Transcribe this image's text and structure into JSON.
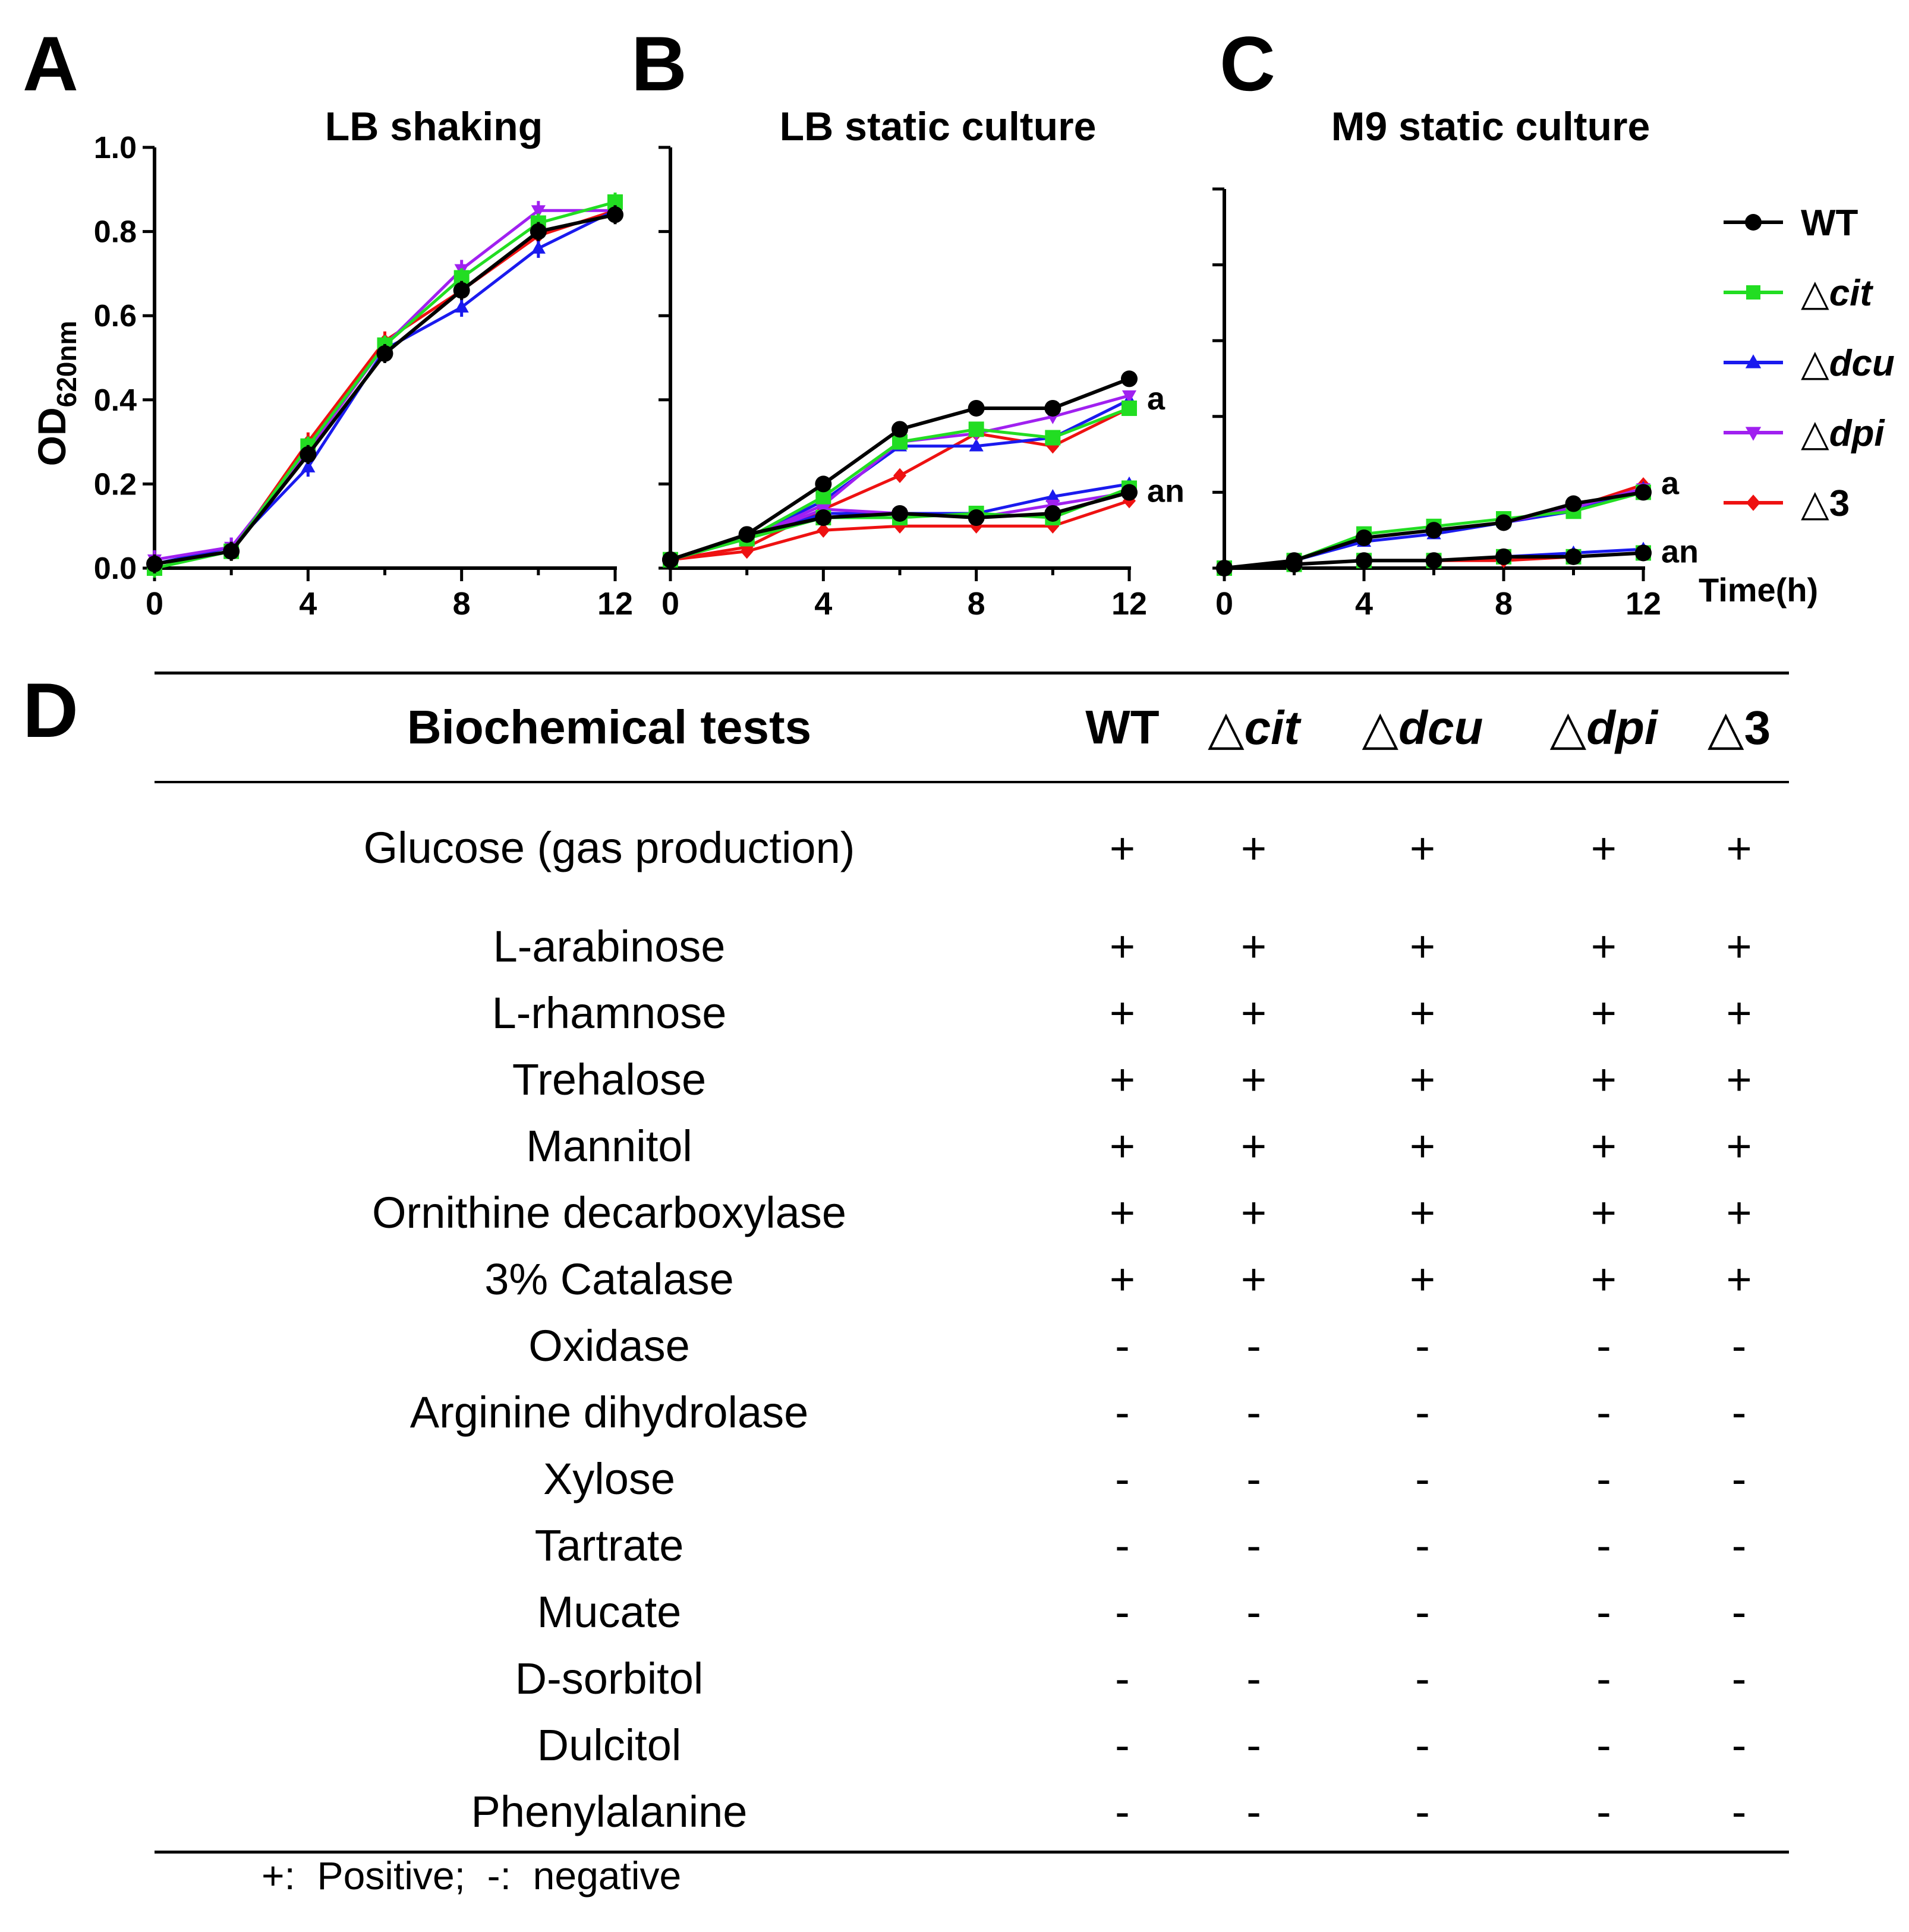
{
  "panel_letters": {
    "a": "A",
    "b": "B",
    "c": "C",
    "d": "D"
  },
  "colors": {
    "WT": "#000000",
    "cit": "#22dd22",
    "dcu": "#1a1aee",
    "dpi": "#a020f0",
    "d3": "#ee1111"
  },
  "legend": [
    {
      "key": "WT",
      "prefix": "",
      "label": "WT",
      "marker": "circle",
      "color": "#000000"
    },
    {
      "key": "cit",
      "prefix": "△",
      "label": "cit",
      "marker": "square",
      "color": "#22dd22"
    },
    {
      "key": "dcu",
      "prefix": "△",
      "label": "dcu",
      "marker": "triangle-up",
      "color": "#1a1aee"
    },
    {
      "key": "dpi",
      "prefix": "△",
      "label": "dpi",
      "marker": "triangle-down",
      "color": "#a020f0"
    },
    {
      "key": "d3",
      "prefix": "△",
      "label": "3",
      "marker": "diamond",
      "color": "#ee1111"
    }
  ],
  "chart_data": [
    {
      "type": "line",
      "panel": "A",
      "title": "LB shaking",
      "ylabel": "OD",
      "ylabel_sub": "620nm",
      "ylim": [
        0,
        1.0
      ],
      "yticks": [
        0.0,
        0.2,
        0.4,
        0.6,
        0.8,
        1.0
      ],
      "ytick_labels": [
        "0.0",
        "0.2",
        "0.4",
        "0.6",
        "0.8",
        "1.0"
      ],
      "xlim": [
        0,
        12
      ],
      "xticks": [
        0,
        4,
        8,
        12
      ],
      "xtick_labels": [
        "0",
        "4",
        "8",
        "12"
      ],
      "x": [
        0,
        2,
        4,
        6,
        8,
        10,
        12
      ],
      "series": [
        {
          "name": "WT",
          "key": "WT",
          "values": [
            0.01,
            0.04,
            0.27,
            0.51,
            0.66,
            0.8,
            0.84
          ]
        },
        {
          "name": "△cit",
          "key": "cit",
          "values": [
            0.0,
            0.04,
            0.29,
            0.53,
            0.69,
            0.82,
            0.87
          ]
        },
        {
          "name": "△dcu",
          "key": "dcu",
          "values": [
            0.01,
            0.05,
            0.24,
            0.52,
            0.62,
            0.76,
            0.85
          ]
        },
        {
          "name": "△dpi",
          "key": "dpi",
          "values": [
            0.02,
            0.05,
            0.28,
            0.53,
            0.71,
            0.85,
            0.85
          ]
        },
        {
          "name": "△3",
          "key": "d3",
          "values": [
            0.01,
            0.04,
            0.3,
            0.54,
            0.66,
            0.79,
            0.85
          ]
        }
      ],
      "annotations": []
    },
    {
      "type": "line",
      "panel": "B",
      "title": "LB static culture",
      "ylim": [
        0,
        1.0
      ],
      "yticks": [
        0.0,
        0.2,
        0.4,
        0.6,
        0.8,
        1.0
      ],
      "ytick_labels": [],
      "xlim": [
        0,
        12
      ],
      "xticks": [
        0,
        4,
        8,
        12
      ],
      "xtick_labels": [
        "0",
        "4",
        "8",
        "12"
      ],
      "x": [
        0,
        2,
        4,
        6,
        8,
        10,
        12
      ],
      "series": [
        {
          "name": "WT (a)",
          "key": "WT",
          "values": [
            0.02,
            0.08,
            0.2,
            0.33,
            0.38,
            0.38,
            0.45
          ]
        },
        {
          "name": "△cit (a)",
          "key": "cit",
          "values": [
            0.02,
            0.07,
            0.17,
            0.3,
            0.33,
            0.31,
            0.38
          ]
        },
        {
          "name": "△dcu (a)",
          "key": "dcu",
          "values": [
            0.02,
            0.07,
            0.16,
            0.29,
            0.29,
            0.31,
            0.4
          ]
        },
        {
          "name": "△dpi (a)",
          "key": "dpi",
          "values": [
            0.02,
            0.07,
            0.15,
            0.3,
            0.32,
            0.36,
            0.41
          ]
        },
        {
          "name": "△3 (a)",
          "key": "d3",
          "values": [
            0.02,
            0.05,
            0.14,
            0.22,
            0.32,
            0.29,
            0.38
          ]
        },
        {
          "name": "WT (an)",
          "key": "WT",
          "values": [
            0.02,
            0.08,
            0.12,
            0.13,
            0.12,
            0.13,
            0.18
          ]
        },
        {
          "name": "△cit (an)",
          "key": "cit",
          "values": [
            0.02,
            0.07,
            0.12,
            0.12,
            0.13,
            0.12,
            0.19
          ]
        },
        {
          "name": "△dcu (an)",
          "key": "dcu",
          "values": [
            0.02,
            0.07,
            0.13,
            0.13,
            0.13,
            0.17,
            0.2
          ]
        },
        {
          "name": "△dpi (an)",
          "key": "dpi",
          "values": [
            0.02,
            0.07,
            0.14,
            0.13,
            0.12,
            0.15,
            0.18
          ]
        },
        {
          "name": "△3 (an)",
          "key": "d3",
          "values": [
            0.02,
            0.04,
            0.09,
            0.1,
            0.1,
            0.1,
            0.16
          ]
        }
      ],
      "annotations": [
        {
          "text": "a",
          "x": 12,
          "y": 0.4
        },
        {
          "text": "an",
          "x": 12,
          "y": 0.18
        }
      ]
    },
    {
      "type": "line",
      "panel": "C",
      "title": "M9 static culture",
      "xlabel": "Time(h)",
      "ylim": [
        0,
        1.0
      ],
      "yticks": [
        0.0,
        0.2,
        0.4,
        0.6,
        0.8,
        1.0
      ],
      "ytick_labels": [],
      "xlim": [
        0,
        12
      ],
      "xticks": [
        0,
        4,
        8,
        12
      ],
      "xtick_labels": [
        "0",
        "4",
        "8",
        "12"
      ],
      "x": [
        0,
        2,
        4,
        6,
        8,
        10,
        12
      ],
      "series": [
        {
          "name": "WT (a)",
          "key": "WT",
          "values": [
            0.0,
            0.02,
            0.08,
            0.1,
            0.12,
            0.17,
            0.2
          ]
        },
        {
          "name": "△cit (a)",
          "key": "cit",
          "values": [
            0.0,
            0.02,
            0.09,
            0.11,
            0.13,
            0.15,
            0.2
          ]
        },
        {
          "name": "△dcu (a)",
          "key": "dcu",
          "values": [
            0.0,
            0.02,
            0.07,
            0.09,
            0.12,
            0.15,
            0.21
          ]
        },
        {
          "name": "△dpi (a)",
          "key": "dpi",
          "values": [
            0.0,
            0.02,
            0.08,
            0.1,
            0.12,
            0.16,
            0.21
          ]
        },
        {
          "name": "△3 (a)",
          "key": "d3",
          "values": [
            0.0,
            0.02,
            0.08,
            0.1,
            0.12,
            0.16,
            0.22
          ]
        },
        {
          "name": "WT (an)",
          "key": "WT",
          "values": [
            0.0,
            0.01,
            0.02,
            0.02,
            0.03,
            0.03,
            0.04
          ]
        },
        {
          "name": "△cit (an)",
          "key": "cit",
          "values": [
            0.0,
            0.01,
            0.02,
            0.02,
            0.03,
            0.03,
            0.04
          ]
        },
        {
          "name": "△dcu (an)",
          "key": "dcu",
          "values": [
            0.0,
            0.01,
            0.02,
            0.02,
            0.03,
            0.04,
            0.05
          ]
        },
        {
          "name": "△dpi (an)",
          "key": "dpi",
          "values": [
            0.0,
            0.01,
            0.02,
            0.02,
            0.03,
            0.03,
            0.04
          ]
        },
        {
          "name": "△3 (an)",
          "key": "d3",
          "values": [
            0.0,
            0.01,
            0.02,
            0.02,
            0.02,
            0.03,
            0.04
          ]
        }
      ],
      "annotations": [
        {
          "text": "a",
          "x": 12,
          "y": 0.22
        },
        {
          "text": "an",
          "x": 12,
          "y": 0.04
        }
      ]
    },
    {
      "type": "table",
      "panel": "D",
      "header": {
        "tests": "Biochemical tests",
        "cols": [
          {
            "prefix": "",
            "label": "WT",
            "italic": false
          },
          {
            "prefix": "△",
            "label": "cit",
            "italic": true
          },
          {
            "prefix": "△",
            "label": "dcu",
            "italic": true
          },
          {
            "prefix": "△",
            "label": "dpi",
            "italic": true
          },
          {
            "prefix": "△",
            "label": "3",
            "italic": false
          }
        ]
      },
      "rows": [
        {
          "test": "Glucose (gas production)",
          "values": [
            "+",
            "+",
            "+",
            "+",
            "+"
          ]
        },
        {
          "test": "L-arabinose",
          "values": [
            "+",
            "+",
            "+",
            "+",
            "+"
          ]
        },
        {
          "test": "L-rhamnose",
          "values": [
            "+",
            "+",
            "+",
            "+",
            "+"
          ]
        },
        {
          "test": "Trehalose",
          "values": [
            "+",
            "+",
            "+",
            "+",
            "+"
          ]
        },
        {
          "test": "Mannitol",
          "values": [
            "+",
            "+",
            "+",
            "+",
            "+"
          ]
        },
        {
          "test": "Ornithine decarboxylase",
          "values": [
            "+",
            "+",
            "+",
            "+",
            "+"
          ]
        },
        {
          "test": "3% Catalase",
          "values": [
            "+",
            "+",
            "+",
            "+",
            "+"
          ]
        },
        {
          "test": "Oxidase",
          "values": [
            "-",
            "-",
            "-",
            "-",
            "-"
          ]
        },
        {
          "test": "Arginine dihydrolase",
          "values": [
            "-",
            "-",
            "-",
            "-",
            "-"
          ]
        },
        {
          "test": "Xylose",
          "values": [
            "-",
            "-",
            "-",
            "-",
            "-"
          ]
        },
        {
          "test": "Tartrate",
          "values": [
            "-",
            "-",
            "-",
            "-",
            "-"
          ]
        },
        {
          "test": "Mucate",
          "values": [
            "-",
            "-",
            "-",
            "-",
            "-"
          ]
        },
        {
          "test": "D-sorbitol",
          "values": [
            "-",
            "-",
            "-",
            "-",
            "-"
          ]
        },
        {
          "test": "Dulcitol",
          "values": [
            "-",
            "-",
            "-",
            "-",
            "-"
          ]
        },
        {
          "test": "Phenylalanine",
          "values": [
            "-",
            "-",
            "-",
            "-",
            "-"
          ]
        }
      ]
    }
  ],
  "footnote": "+:  Positive;  -:  negative"
}
